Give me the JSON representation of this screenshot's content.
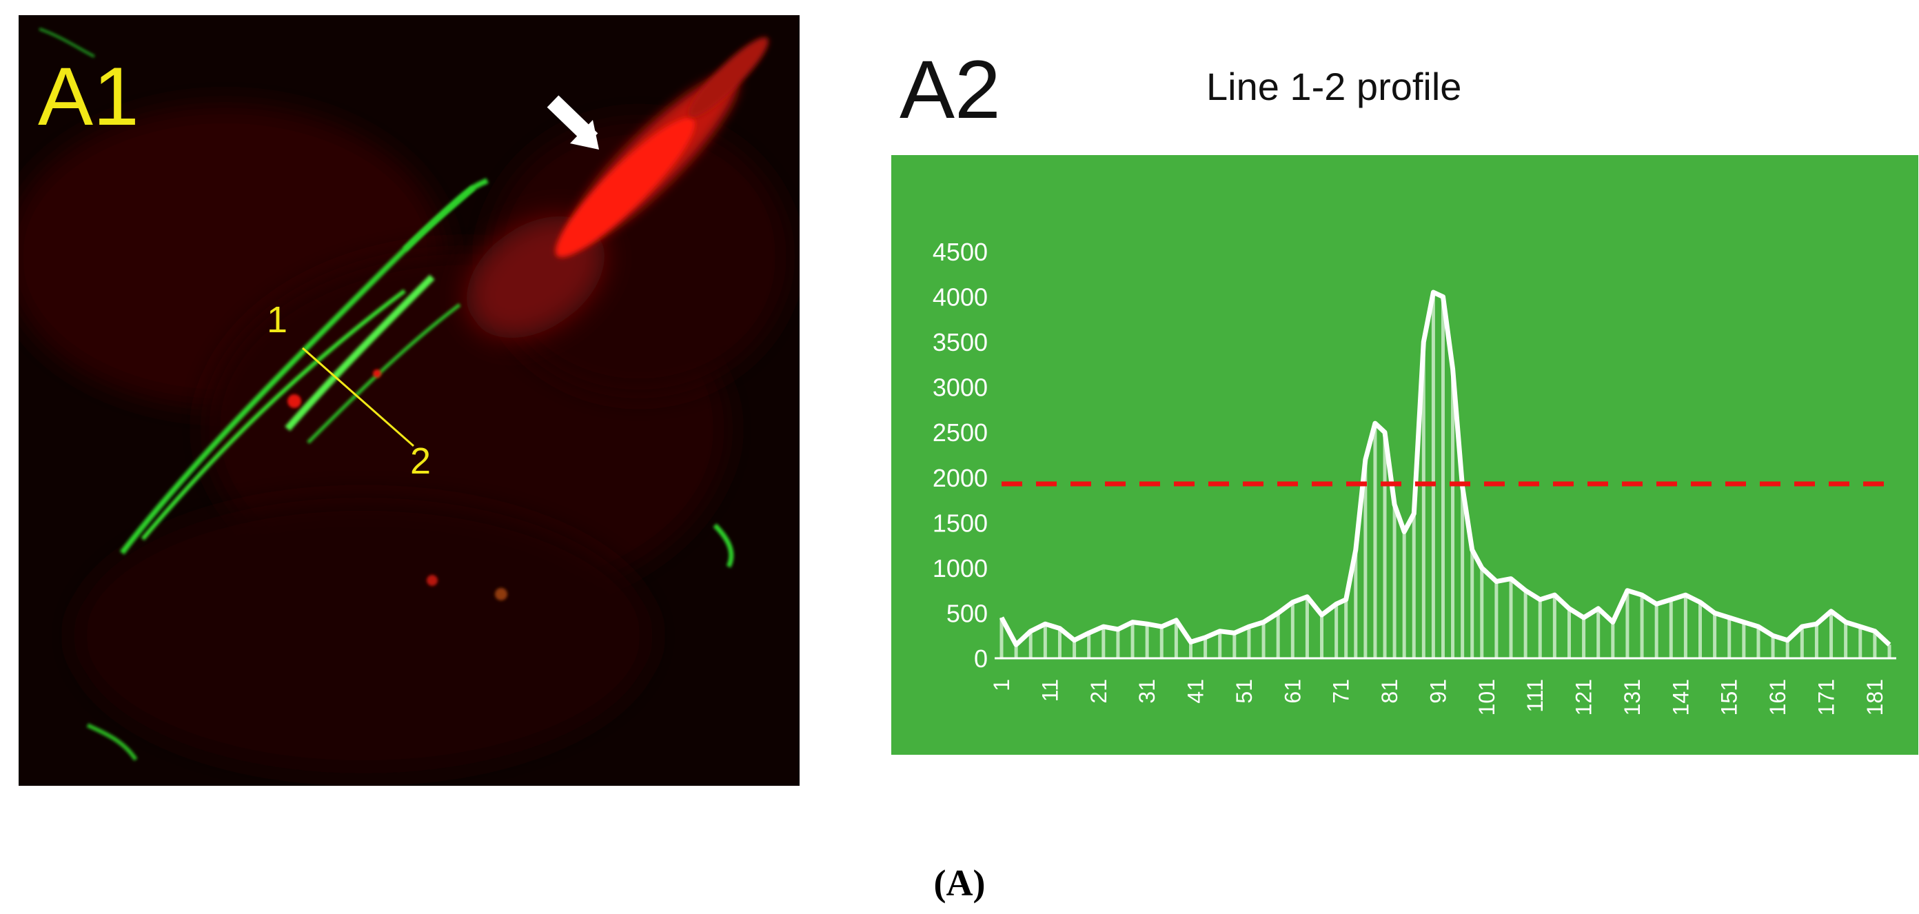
{
  "panel_a1": {
    "label": "A1",
    "point_1": "1",
    "point_2": "2"
  },
  "panel_a2": {
    "label": "A2"
  },
  "chart_data": {
    "type": "bar",
    "title": "Line 1-2 profile",
    "xlabel": "",
    "ylabel": "",
    "ylim": [
      0,
      4500
    ],
    "yticks": [
      0,
      500,
      1000,
      1500,
      2000,
      2500,
      3000,
      3500,
      4000,
      4500
    ],
    "xticks": [
      1,
      11,
      21,
      31,
      41,
      51,
      61,
      71,
      81,
      91,
      101,
      111,
      121,
      131,
      141,
      151,
      161,
      171,
      181
    ],
    "threshold": 1930,
    "x": [
      1,
      4,
      7,
      10,
      13,
      16,
      19,
      22,
      25,
      28,
      31,
      34,
      37,
      40,
      43,
      46,
      49,
      52,
      55,
      58,
      61,
      64,
      67,
      70,
      72,
      74,
      76,
      78,
      80,
      82,
      84,
      86,
      88,
      90,
      92,
      94,
      96,
      98,
      100,
      103,
      106,
      109,
      112,
      115,
      118,
      121,
      124,
      127,
      130,
      133,
      136,
      139,
      142,
      145,
      148,
      151,
      154,
      157,
      160,
      163,
      166,
      169,
      172,
      175,
      178,
      181,
      184
    ],
    "values": [
      450,
      150,
      300,
      380,
      330,
      200,
      280,
      350,
      320,
      400,
      380,
      350,
      420,
      180,
      230,
      300,
      280,
      350,
      400,
      500,
      620,
      680,
      480,
      600,
      650,
      1200,
      2200,
      2600,
      2500,
      1700,
      1400,
      1600,
      3500,
      4050,
      4000,
      3200,
      1900,
      1200,
      1000,
      850,
      880,
      750,
      650,
      700,
      550,
      450,
      550,
      400,
      750,
      700,
      600,
      650,
      700,
      620,
      500,
      450,
      400,
      350,
      250,
      200,
      350,
      380,
      520,
      400,
      350,
      300,
      150
    ],
    "colors": {
      "background": "#45b03e",
      "line": "#ffffff",
      "threshold": "#ee1111"
    }
  },
  "caption": "(A)"
}
